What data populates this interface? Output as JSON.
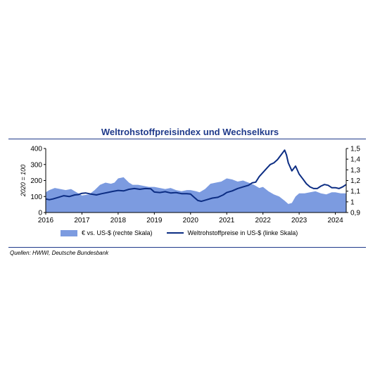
{
  "chart_title": "Weltrohstoffpreisindex und Wechselkurs",
  "source": "Quellen: HWWI, Deutsche Bundesbank",
  "colors": {
    "area": "#7c9be0",
    "line": "#0c2d83",
    "title": "#1f3a8a"
  },
  "chart_data": {
    "type": "area",
    "title": "Weltrohstoffpreisindex und Wechselkurs",
    "xlabel": "",
    "ylabel": "2020 = 100",
    "ylabel_right": "",
    "x_ticks": [
      "2016",
      "2017",
      "2018",
      "2019",
      "2020",
      "2021",
      "2022",
      "2023",
      "2024"
    ],
    "y_left_ticks": [
      "0",
      "100",
      "200",
      "300",
      "400"
    ],
    "y_right_ticks": [
      "0,9",
      "1",
      "1,1",
      "1,2",
      "1,3",
      "1,4",
      "1,5"
    ],
    "ylim_left": [
      0,
      400
    ],
    "ylim_right": [
      0.9,
      1.5
    ],
    "xlim": [
      2016.0,
      2024.3
    ],
    "grid": false,
    "legend_position": "bottom",
    "series": [
      {
        "name": "€ vs. US-$ (rechte Skala)",
        "type": "area",
        "axis": "right",
        "x": [
          2016.0,
          2016.1,
          2016.25,
          2016.4,
          2016.55,
          2016.7,
          2016.85,
          2017.0,
          2017.2,
          2017.35,
          2017.5,
          2017.65,
          2017.8,
          2017.9,
          2018.0,
          2018.15,
          2018.3,
          2018.4,
          2018.55,
          2018.7,
          2018.85,
          2019.0,
          2019.15,
          2019.3,
          2019.45,
          2019.6,
          2019.75,
          2019.9,
          2020.0,
          2020.15,
          2020.25,
          2020.4,
          2020.55,
          2020.7,
          2020.85,
          2021.0,
          2021.15,
          2021.3,
          2021.45,
          2021.6,
          2021.75,
          2021.9,
          2022.0,
          2022.15,
          2022.3,
          2022.45,
          2022.6,
          2022.7,
          2022.8,
          2022.9,
          2023.0,
          2023.15,
          2023.3,
          2023.45,
          2023.6,
          2023.75,
          2023.9,
          2024.0,
          2024.15,
          2024.3
        ],
        "y": [
          1.09,
          1.11,
          1.13,
          1.12,
          1.11,
          1.12,
          1.09,
          1.06,
          1.07,
          1.11,
          1.16,
          1.18,
          1.17,
          1.18,
          1.22,
          1.23,
          1.18,
          1.16,
          1.16,
          1.15,
          1.14,
          1.14,
          1.13,
          1.12,
          1.13,
          1.11,
          1.1,
          1.11,
          1.11,
          1.1,
          1.09,
          1.12,
          1.17,
          1.18,
          1.19,
          1.22,
          1.21,
          1.19,
          1.2,
          1.18,
          1.16,
          1.13,
          1.14,
          1.1,
          1.07,
          1.05,
          1.01,
          0.98,
          0.99,
          1.05,
          1.08,
          1.08,
          1.09,
          1.1,
          1.08,
          1.07,
          1.09,
          1.09,
          1.08,
          1.08
        ]
      },
      {
        "name": "Weltrohstoffpreise in US-$ (linke Skala)",
        "type": "line",
        "axis": "left",
        "x": [
          2016.0,
          2016.1,
          2016.2,
          2016.35,
          2016.5,
          2016.65,
          2016.8,
          2016.9,
          2017.0,
          2017.1,
          2017.25,
          2017.4,
          2017.55,
          2017.7,
          2017.85,
          2018.0,
          2018.15,
          2018.3,
          2018.45,
          2018.6,
          2018.75,
          2018.9,
          2019.0,
          2019.15,
          2019.3,
          2019.45,
          2019.6,
          2019.75,
          2019.9,
          2020.0,
          2020.1,
          2020.2,
          2020.3,
          2020.45,
          2020.6,
          2020.75,
          2020.9,
          2021.0,
          2021.15,
          2021.3,
          2021.45,
          2021.6,
          2021.7,
          2021.8,
          2021.9,
          2022.0,
          2022.1,
          2022.2,
          2022.3,
          2022.4,
          2022.5,
          2022.6,
          2022.65,
          2022.7,
          2022.8,
          2022.9,
          2023.0,
          2023.1,
          2023.2,
          2023.3,
          2023.4,
          2023.5,
          2023.6,
          2023.7,
          2023.8,
          2023.9,
          2024.0,
          2024.1,
          2024.2,
          2024.3
        ],
        "y": [
          85,
          80,
          85,
          95,
          105,
          100,
          110,
          112,
          120,
          122,
          115,
          110,
          118,
          125,
          132,
          138,
          135,
          145,
          150,
          145,
          150,
          148,
          128,
          125,
          130,
          122,
          125,
          118,
          118,
          115,
          95,
          75,
          70,
          80,
          90,
          95,
          110,
          125,
          135,
          150,
          160,
          170,
          185,
          190,
          225,
          250,
          275,
          300,
          310,
          330,
          360,
          390,
          360,
          310,
          260,
          290,
          240,
          210,
          180,
          160,
          150,
          150,
          165,
          175,
          170,
          155,
          155,
          150,
          160,
          175
        ]
      }
    ]
  }
}
